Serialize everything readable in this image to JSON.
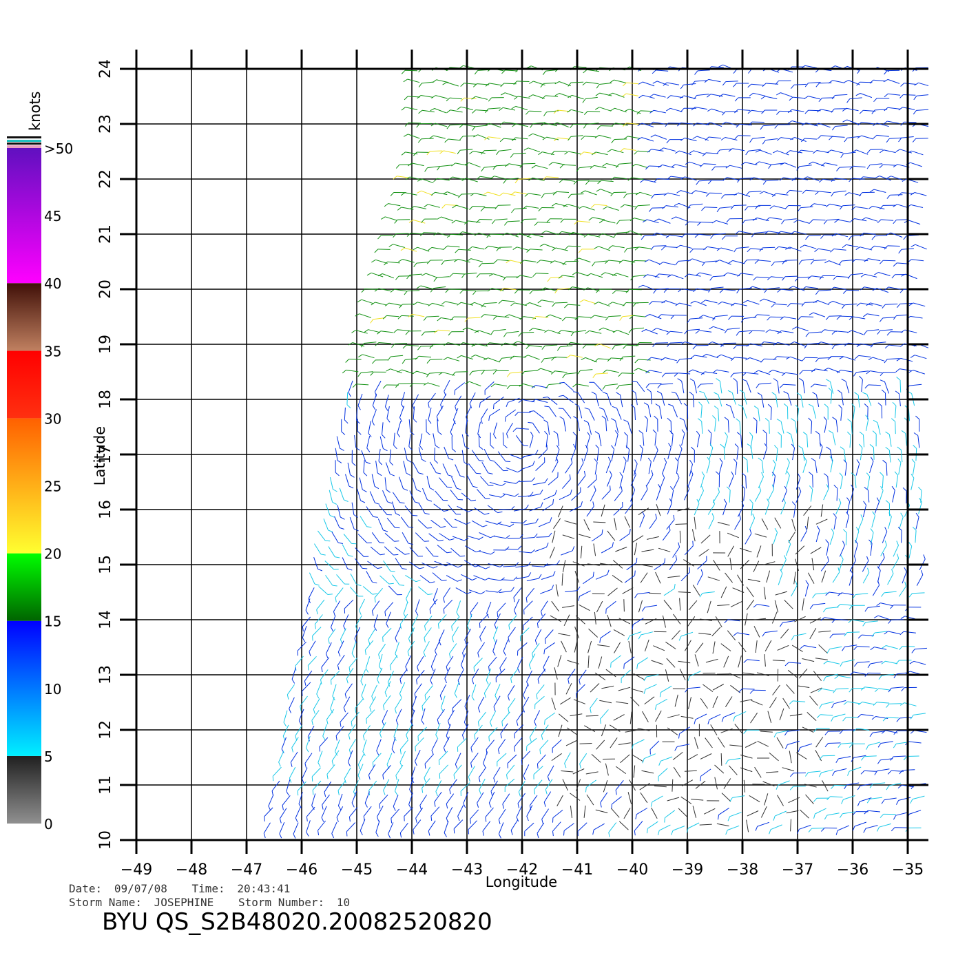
{
  "colorbar": {
    "unit_label": "knots",
    "ticks": [
      ">50",
      "45",
      "40",
      "35",
      "30",
      "25",
      "20",
      "15",
      "10",
      "5",
      "0"
    ],
    "bands": [
      {
        "range": [
          0,
          5
        ],
        "colors": [
          "#909090",
          "#202020"
        ]
      },
      {
        "range": [
          5,
          15
        ],
        "colors": [
          "#00f0ff",
          "#0000ff"
        ]
      },
      {
        "range": [
          15,
          20
        ],
        "colors": [
          "#006400",
          "#00ff00"
        ]
      },
      {
        "range": [
          20,
          30
        ],
        "colors": [
          "#ffff30",
          "#ff6000"
        ]
      },
      {
        "range": [
          30,
          35
        ],
        "colors": [
          "#ff3010",
          "#ff0000"
        ]
      },
      {
        "range": [
          35,
          40
        ],
        "colors": [
          "#c08060",
          "#401008"
        ]
      },
      {
        "range": [
          40,
          50
        ],
        "colors": [
          "#ff00ff",
          "#6010c0"
        ]
      }
    ]
  },
  "map": {
    "x_label": "Longitude",
    "y_label": "Latitude",
    "x_ticks": [
      "−49",
      "−48",
      "−47",
      "−46",
      "−45",
      "−44",
      "−43",
      "−42",
      "−41",
      "−40",
      "−39",
      "−38",
      "−37",
      "−36",
      "−35"
    ],
    "y_ticks": [
      "10",
      "11",
      "12",
      "13",
      "14",
      "15",
      "16",
      "17",
      "18",
      "19",
      "20",
      "21",
      "22",
      "23",
      "24"
    ],
    "lon_range": [
      -49,
      -34.6
    ],
    "lat_range": [
      10,
      24
    ]
  },
  "storm_center": {
    "lon": -42,
    "lat": 17.3
  },
  "wind_speed_colors": {
    "calm": "#303030",
    "light": "#18c8e8",
    "moderate": "#0030e0",
    "fresh": "#109010",
    "strong": "#f0e020"
  },
  "meta": {
    "date_label": "Date:",
    "date": "09/07/08",
    "time_label": "Time:",
    "time": "20:43:41",
    "storm_name_label": "Storm Name:",
    "storm_name": "JOSEPHINE",
    "storm_number_label": "Storm Number:",
    "storm_number": "10"
  },
  "product_title": "BYU QS_S2B48020.20082520820"
}
